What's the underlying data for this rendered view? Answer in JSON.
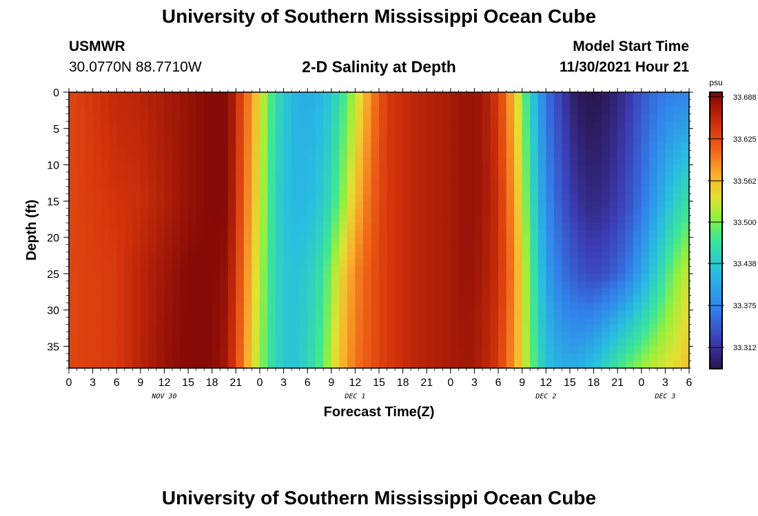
{
  "page": {
    "title_top": "University of Southern Mississippi Ocean Cube",
    "title_bottom": "University of Southern Mississippi Ocean Cube",
    "station_id": "USMWR",
    "station_coords": "30.0770N  88.7710W",
    "plot_title": "2-D Salinity at Depth",
    "model_label": "Model Start Time",
    "model_time": "11/30/2021 Hour 21"
  },
  "chart_data": {
    "type": "heatmap",
    "title": "2-D Salinity at Depth",
    "xlabel": "Forecast Time(Z)",
    "ylabel": "Depth (ft)",
    "x_range_hours": [
      0,
      78
    ],
    "y_range_ft": [
      0,
      38
    ],
    "x_tick_hours": [
      0,
      3,
      6,
      9,
      12,
      15,
      18,
      21,
      24,
      27,
      30,
      33,
      36,
      39,
      42,
      45,
      48,
      51,
      54,
      57,
      60,
      63,
      66,
      69,
      72,
      75,
      78
    ],
    "x_tick_labels": [
      "0",
      "3",
      "6",
      "9",
      "12",
      "15",
      "18",
      "21",
      "0",
      "3",
      "6",
      "9",
      "12",
      "15",
      "18",
      "21",
      "0",
      "3",
      "6",
      "9",
      "12",
      "15",
      "18",
      "21",
      "0",
      "3",
      "6"
    ],
    "date_labels": [
      {
        "text": "NOV 30",
        "hour": 12
      },
      {
        "text": "DEC 1",
        "hour": 36
      },
      {
        "text": "DEC 2",
        "hour": 60
      },
      {
        "text": "DEC 3",
        "hour": 75
      }
    ],
    "y_ticks": [
      0,
      5,
      10,
      15,
      20,
      25,
      30,
      35
    ],
    "y_tick_labels": [
      "0",
      "5",
      "10",
      "15",
      "20",
      "25",
      "30",
      "35"
    ],
    "colorbar": {
      "unit": "psu",
      "min": 33.28,
      "max": 33.695,
      "tick_values": [
        33.312,
        33.375,
        33.438,
        33.5,
        33.562,
        33.625,
        33.688
      ],
      "tick_labels": [
        "33.312",
        "33.375",
        "33.438",
        "33.500",
        "33.562",
        "33.625",
        "33.688"
      ]
    },
    "depth_levels_ft": [
      0,
      15,
      25,
      38
    ],
    "time_hours": [
      0,
      6,
      9,
      12,
      15,
      18,
      20,
      22,
      24,
      26,
      28,
      30,
      32,
      34,
      36,
      38,
      40,
      42,
      44,
      46,
      48,
      50,
      52,
      54,
      56,
      58,
      60,
      62,
      64,
      66,
      68,
      70,
      72,
      74,
      76,
      78
    ],
    "salinity_psu": [
      [
        33.63,
        33.655,
        33.66,
        33.67,
        33.68,
        33.69,
        33.69,
        33.62,
        33.54,
        33.46,
        33.42,
        33.41,
        33.42,
        33.46,
        33.52,
        33.59,
        33.64,
        33.65,
        33.66,
        33.665,
        33.67,
        33.68,
        33.675,
        33.64,
        33.56,
        33.45,
        33.36,
        33.32,
        33.285,
        33.28,
        33.29,
        33.31,
        33.34,
        33.36,
        33.37,
        33.37
      ],
      [
        33.63,
        33.645,
        33.65,
        33.665,
        33.68,
        33.69,
        33.69,
        33.61,
        33.53,
        33.45,
        33.42,
        33.42,
        33.44,
        33.49,
        33.56,
        33.61,
        33.64,
        33.65,
        33.66,
        33.665,
        33.67,
        33.68,
        33.675,
        33.65,
        33.58,
        33.47,
        33.38,
        33.34,
        33.31,
        33.3,
        33.31,
        33.33,
        33.36,
        33.4,
        33.44,
        33.47
      ],
      [
        33.63,
        33.64,
        33.66,
        33.675,
        33.69,
        33.69,
        33.68,
        33.6,
        33.52,
        33.45,
        33.43,
        33.44,
        33.47,
        33.54,
        33.59,
        33.62,
        33.64,
        33.65,
        33.66,
        33.665,
        33.67,
        33.68,
        33.67,
        33.65,
        33.59,
        33.49,
        33.4,
        33.36,
        33.34,
        33.33,
        33.34,
        33.36,
        33.4,
        33.45,
        33.5,
        33.53
      ],
      [
        33.63,
        33.64,
        33.66,
        33.68,
        33.69,
        33.69,
        33.67,
        33.59,
        33.51,
        33.45,
        33.43,
        33.45,
        33.49,
        33.56,
        33.6,
        33.62,
        33.64,
        33.65,
        33.66,
        33.665,
        33.67,
        33.675,
        33.665,
        33.64,
        33.58,
        33.5,
        33.43,
        33.41,
        33.41,
        33.43,
        33.46,
        33.49,
        33.51,
        33.53,
        33.54,
        33.56
      ]
    ]
  }
}
